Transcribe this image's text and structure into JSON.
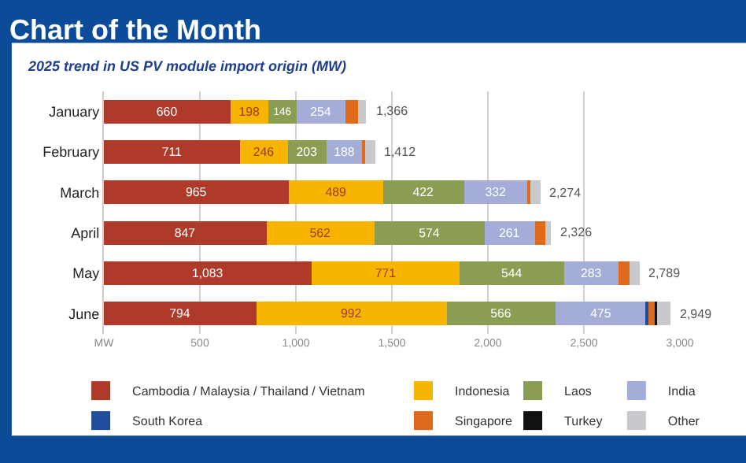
{
  "chart_data": {
    "type": "bar",
    "orientation": "horizontal",
    "stacked": true,
    "title": "Chart of the Month",
    "subtitle": "2025 trend in US PV module import origin (MW)",
    "categories": [
      "January",
      "February",
      "March",
      "April",
      "May",
      "June"
    ],
    "series": [
      {
        "name": "Cambodia / Malaysia / Thailand / Vietnam",
        "color": "#b03a2a",
        "values": [
          660,
          711,
          965,
          847,
          1083,
          794
        ],
        "value_labels": [
          "660",
          "711",
          "965",
          "847",
          "1,083",
          "794"
        ]
      },
      {
        "name": "Indonesia",
        "color": "#f7b500",
        "values": [
          198,
          246,
          489,
          562,
          771,
          992
        ],
        "value_labels": [
          "198",
          "246",
          "489",
          "562",
          "771",
          "992"
        ]
      },
      {
        "name": "Laos",
        "color": "#8b9d52",
        "values": [
          146,
          203,
          422,
          574,
          544,
          566
        ],
        "value_labels": [
          "146",
          "203",
          "422",
          "574",
          "544",
          "566"
        ]
      },
      {
        "name": "India",
        "color": "#a4acd8",
        "values": [
          254,
          188,
          332,
          261,
          283,
          475
        ],
        "value_labels": [
          "254",
          "188",
          "332",
          "261",
          "283",
          "475"
        ]
      },
      {
        "name": "South Korea",
        "color": "#1f4f9c",
        "values": [
          0,
          0,
          0,
          0,
          0,
          10
        ]
      },
      {
        "name": "Singapore",
        "color": "#e06a1c",
        "values": [
          66,
          12,
          14,
          55,
          55,
          38
        ]
      },
      {
        "name": "Turkey",
        "color": "#111111",
        "values": [
          0,
          0,
          0,
          0,
          0,
          6
        ]
      },
      {
        "name": "Other",
        "color": "#c8c9cc",
        "values": [
          42,
          52,
          52,
          27,
          53,
          68
        ]
      }
    ],
    "totals": [
      "1,366",
      "1,412",
      "2,274",
      "2,326",
      "2,789",
      "2,949"
    ],
    "xlim": [
      0,
      3000
    ],
    "xticks": [
      {
        "value": 0,
        "label": "MW"
      },
      {
        "value": 500,
        "label": "500"
      },
      {
        "value": 1000,
        "label": "1,000"
      },
      {
        "value": 1500,
        "label": "1,500"
      },
      {
        "value": 2000,
        "label": "2,000"
      },
      {
        "value": 2500,
        "label": "2,500"
      },
      {
        "value": 3000,
        "label": "3,000"
      }
    ],
    "grid": "x",
    "legend": "bottom"
  }
}
